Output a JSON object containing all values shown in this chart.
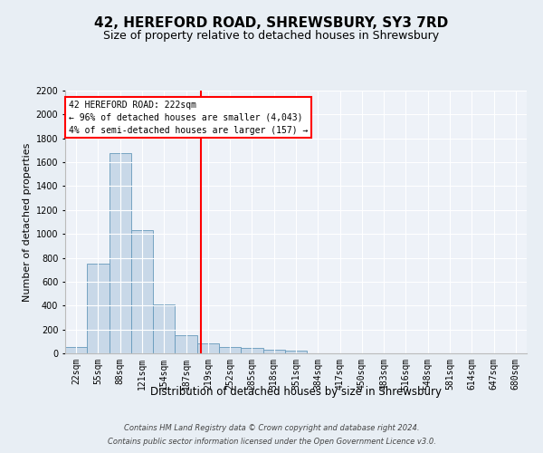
{
  "title": "42, HEREFORD ROAD, SHREWSBURY, SY3 7RD",
  "subtitle": "Size of property relative to detached houses in Shrewsbury",
  "xlabel": "Distribution of detached houses by size in Shrewsbury",
  "ylabel": "Number of detached properties",
  "footnote1": "Contains HM Land Registry data © Crown copyright and database right 2024.",
  "footnote2": "Contains public sector information licensed under the Open Government Licence v3.0.",
  "bin_labels": [
    "22sqm",
    "55sqm",
    "88sqm",
    "121sqm",
    "154sqm",
    "187sqm",
    "219sqm",
    "252sqm",
    "285sqm",
    "318sqm",
    "351sqm",
    "384sqm",
    "417sqm",
    "450sqm",
    "483sqm",
    "516sqm",
    "548sqm",
    "581sqm",
    "614sqm",
    "647sqm",
    "680sqm"
  ],
  "bar_values": [
    50,
    750,
    1675,
    1035,
    410,
    155,
    80,
    50,
    45,
    30,
    20,
    0,
    0,
    0,
    0,
    0,
    0,
    0,
    0,
    0,
    0
  ],
  "bar_color": "#c8d8e8",
  "bar_edgecolor": "#6699bb",
  "vline_x": 6.18,
  "vline_color": "red",
  "annotation_text": "42 HEREFORD ROAD: 222sqm\n← 96% of detached houses are smaller (4,043)\n4% of semi-detached houses are larger (157) →",
  "annotation_box_color": "red",
  "annotation_fill": "white",
  "ylim": [
    0,
    2200
  ],
  "yticks": [
    0,
    200,
    400,
    600,
    800,
    1000,
    1200,
    1400,
    1600,
    1800,
    2000,
    2200
  ],
  "background_color": "#e8eef4",
  "plot_background": "#eef2f8",
  "grid_color": "white",
  "title_fontsize": 11,
  "subtitle_fontsize": 9,
  "axis_label_fontsize": 8,
  "tick_fontsize": 7,
  "footnote_fontsize": 6,
  "annotation_fontsize": 7
}
